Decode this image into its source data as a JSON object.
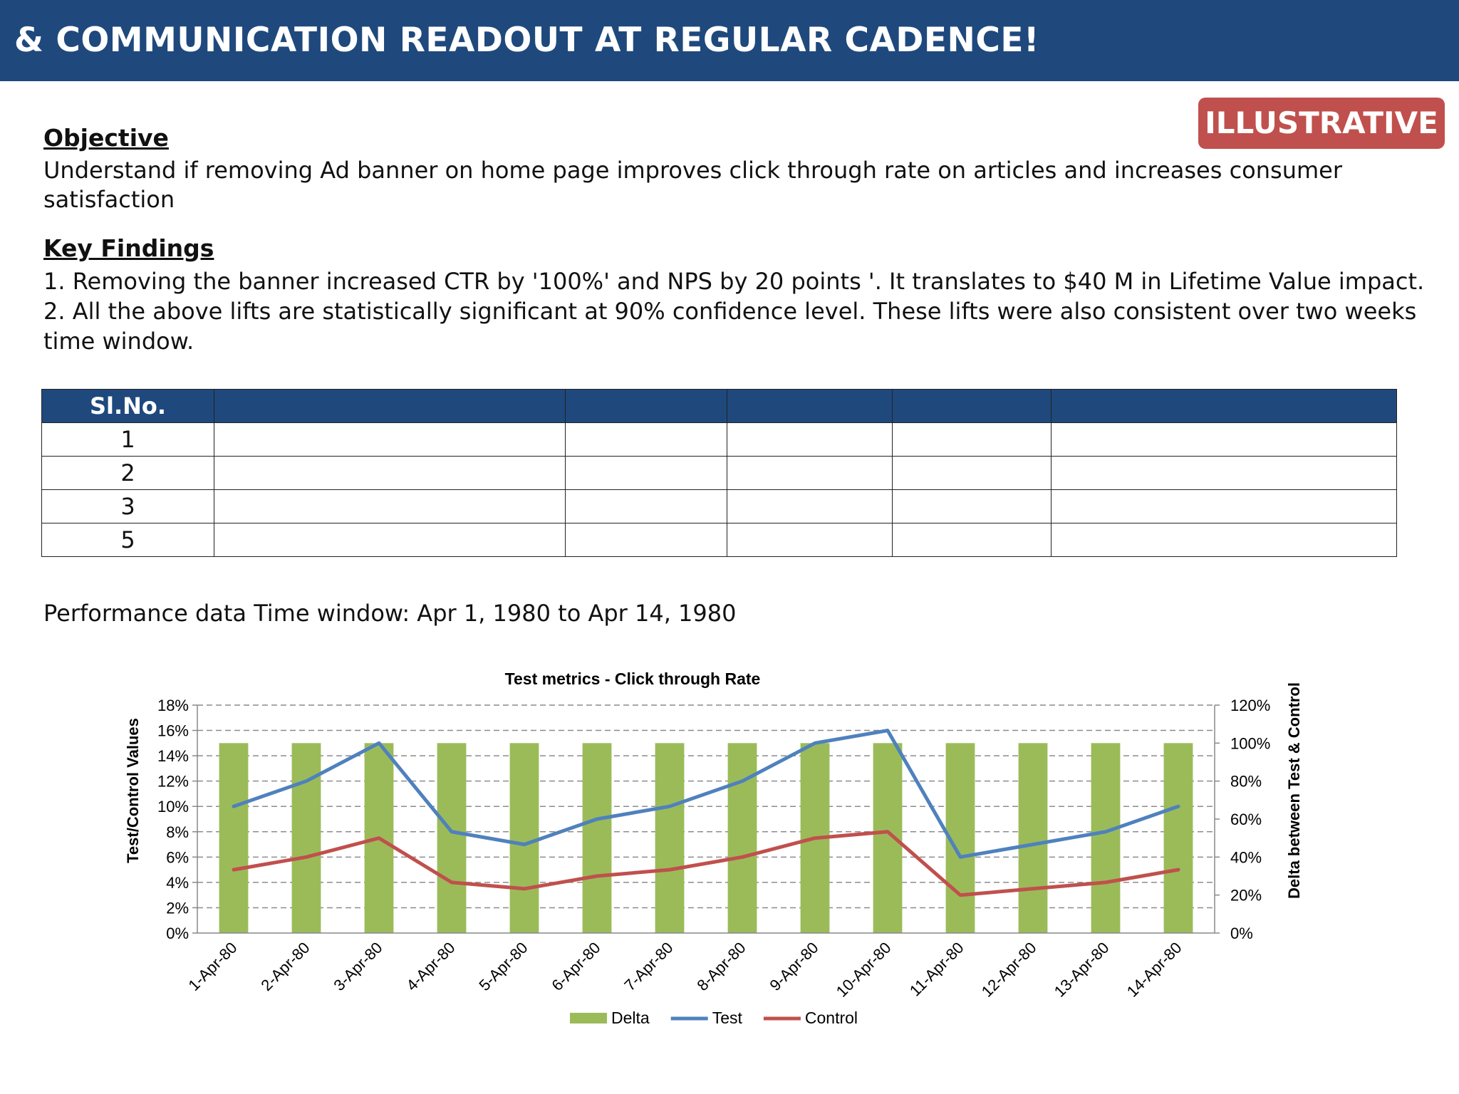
{
  "header": {
    "title": "& COMMUNICATION READOUT AT REGULAR CADENCE!"
  },
  "badge": {
    "label": "ILLUSTRATIVE"
  },
  "objective": {
    "heading": "Objective",
    "line1": "Understand if removing Ad banner on home page improves click through rate on articles and increases consumer",
    "line2": "satisfaction"
  },
  "findings": {
    "heading": "Key Findings",
    "line1": "1. Removing the banner increased CTR by '100%' and NPS by 20 points '. It translates to $40 M in Lifetime Value impact.",
    "line2": "2. All the above lifts are statistically significant at 90% confidence level. These lifts were also consistent over two weeks",
    "line3": "time window."
  },
  "table": {
    "headers": [
      "Sl.No.",
      "",
      "",
      "",
      "",
      ""
    ],
    "rows": [
      [
        "1",
        "",
        "",
        "",
        "",
        ""
      ],
      [
        "2",
        "",
        "",
        "",
        "",
        ""
      ],
      [
        "3",
        "",
        "",
        "",
        "",
        ""
      ],
      [
        "5",
        "",
        "",
        "",
        "",
        ""
      ]
    ]
  },
  "time_window": "Performance data Time window: Apr 1, 1980 to Apr 14, 1980",
  "colors": {
    "header_bg": "#1f497d",
    "badge_bg": "#c0504d",
    "delta": "#9bbb59",
    "test": "#4f81bd",
    "control": "#c0504d"
  },
  "chart_data": {
    "type": "bar",
    "title": "Test metrics - Click through Rate",
    "ylabel": "Test/Control Values",
    "y2label": "Delta between Test & Control",
    "categories": [
      "1-Apr-80",
      "2-Apr-80",
      "3-Apr-80",
      "4-Apr-80",
      "5-Apr-80",
      "6-Apr-80",
      "7-Apr-80",
      "8-Apr-80",
      "9-Apr-80",
      "10-Apr-80",
      "11-Apr-80",
      "12-Apr-80",
      "13-Apr-80",
      "14-Apr-80"
    ],
    "yticks": [
      "0%",
      "2%",
      "4%",
      "6%",
      "8%",
      "10%",
      "12%",
      "14%",
      "16%",
      "18%"
    ],
    "y2ticks": [
      "0%",
      "20%",
      "40%",
      "60%",
      "80%",
      "100%",
      "120%"
    ],
    "ylim": [
      0,
      18
    ],
    "y2lim": [
      0,
      120
    ],
    "grid": true,
    "legend_position": "bottom",
    "series": [
      {
        "name": "Delta",
        "kind": "bar",
        "axis": "right",
        "values": [
          100,
          100,
          100,
          100,
          100,
          100,
          100,
          100,
          100,
          100,
          100,
          100,
          100,
          100
        ]
      },
      {
        "name": "Test",
        "kind": "line",
        "axis": "left",
        "values": [
          10,
          12,
          15,
          8,
          7,
          9,
          10,
          12,
          15,
          16,
          6,
          7,
          8,
          10
        ]
      },
      {
        "name": "Control",
        "kind": "line",
        "axis": "left",
        "values": [
          5,
          6,
          7.5,
          4,
          3.5,
          4.5,
          5,
          6,
          7.5,
          8,
          3,
          3.5,
          4,
          5
        ]
      }
    ]
  }
}
